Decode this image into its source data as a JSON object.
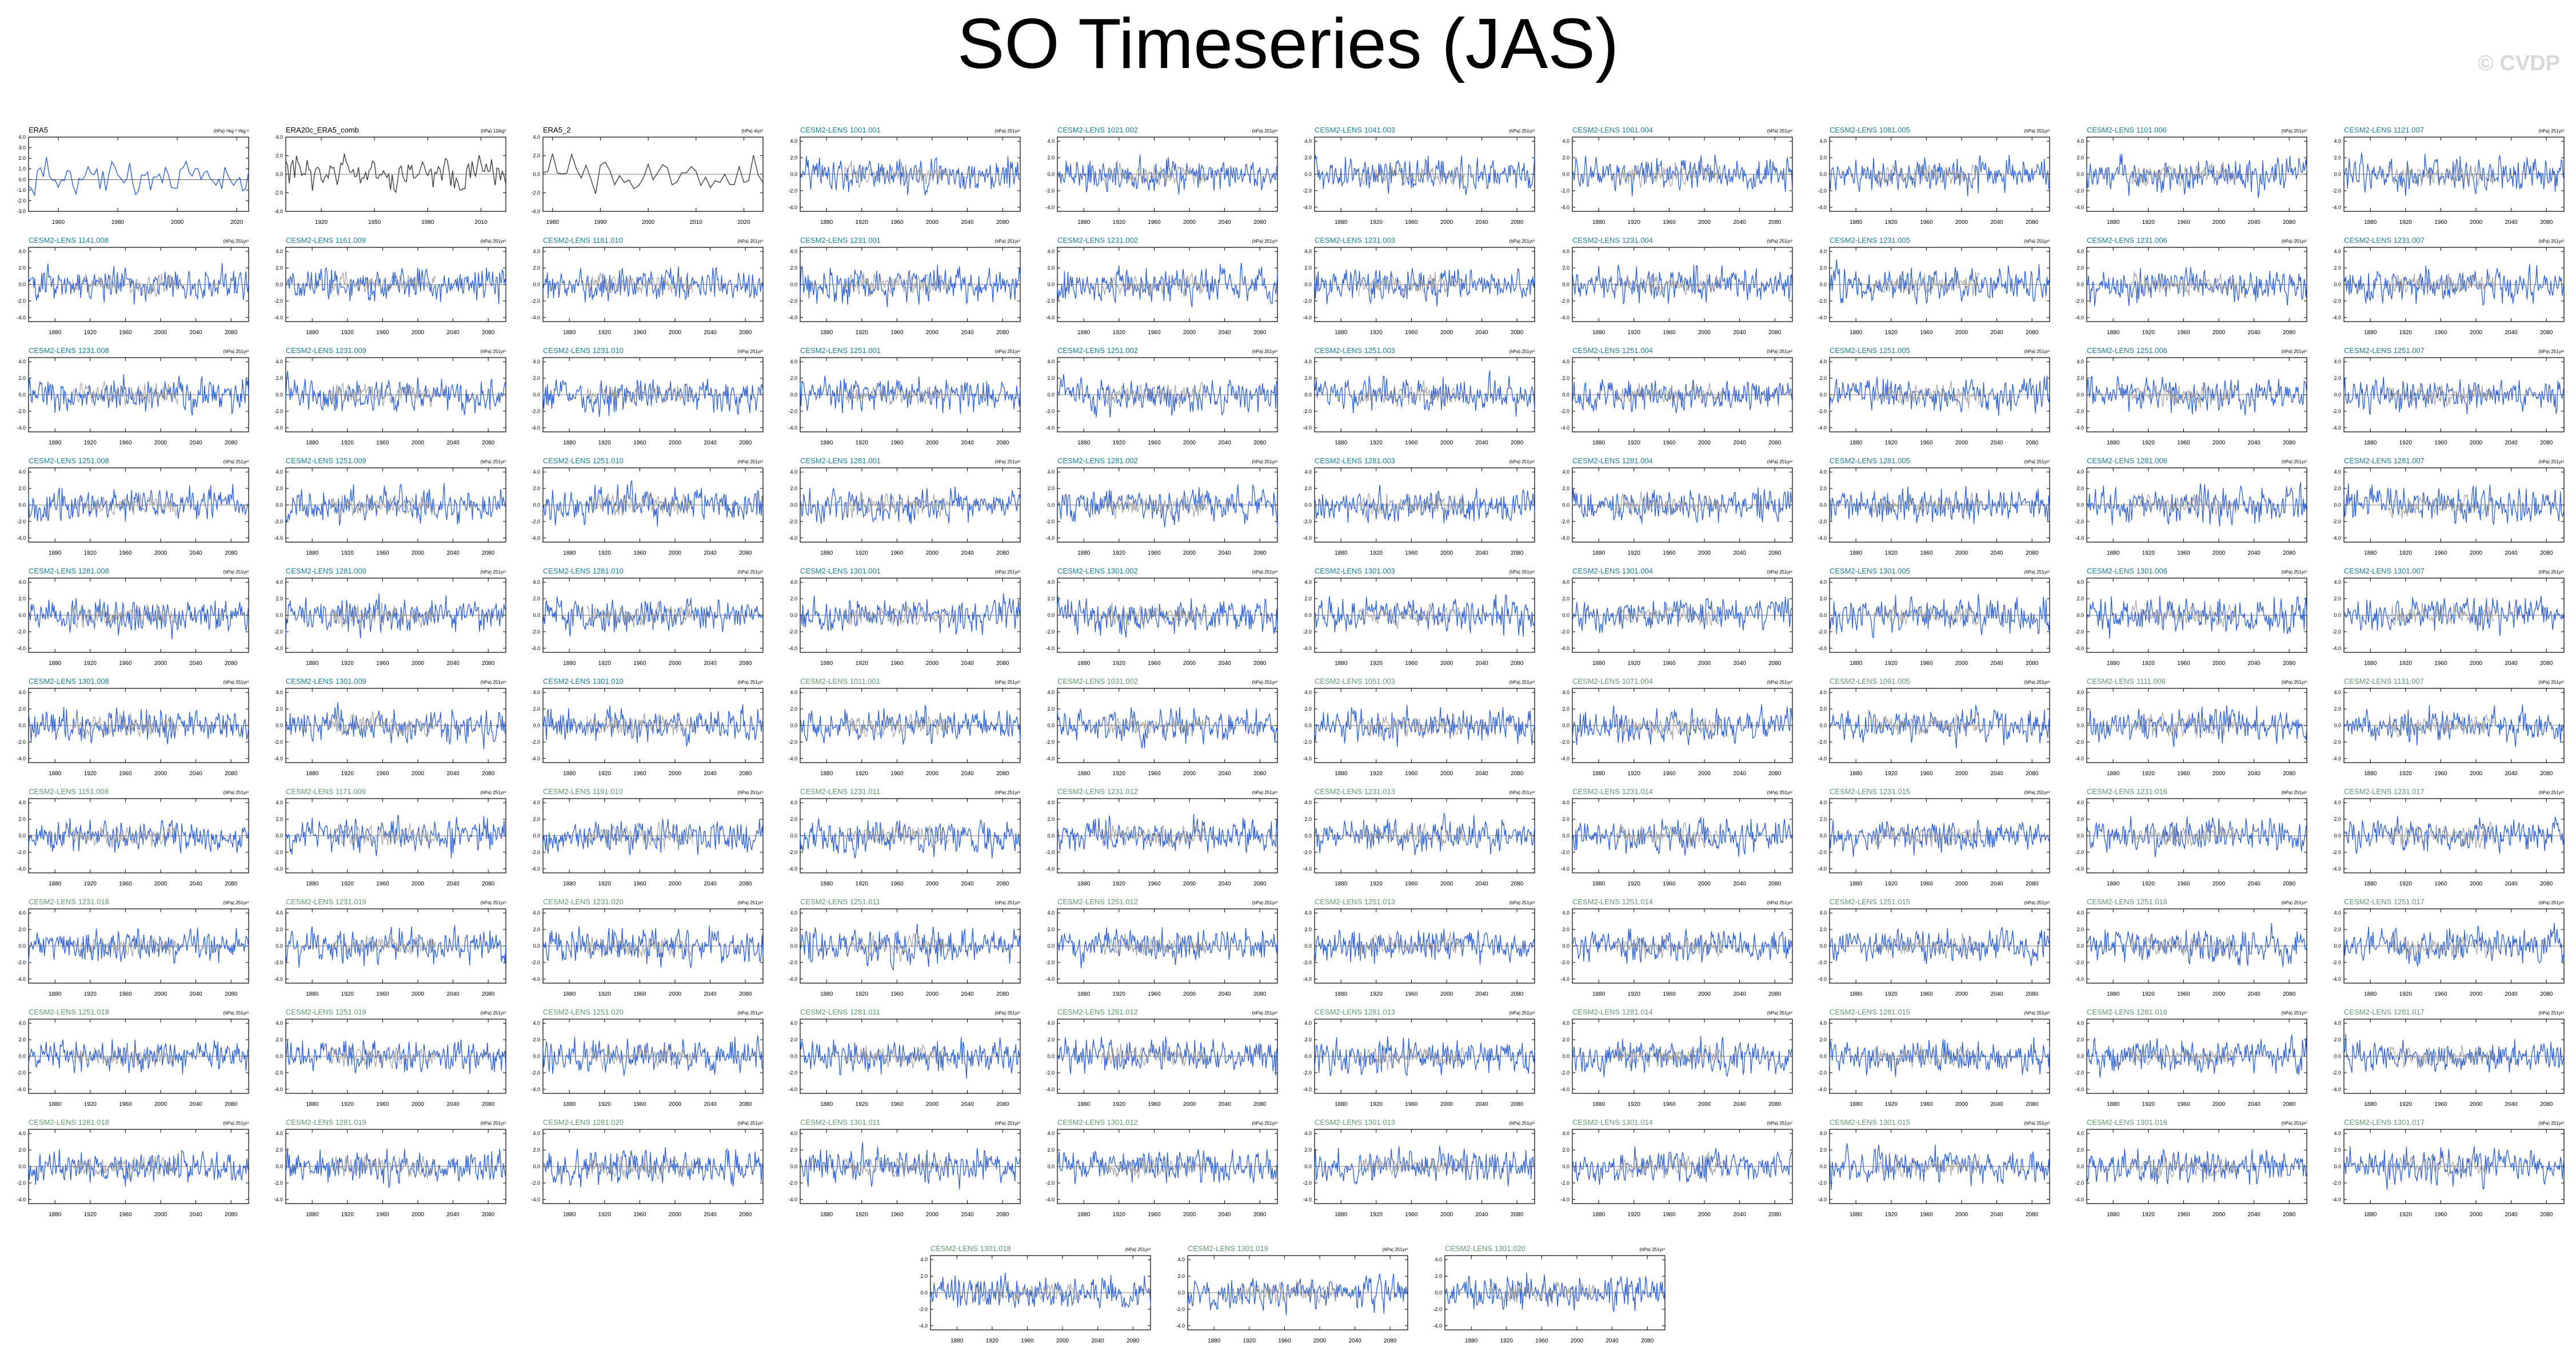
{
  "page": {
    "title": "SO Timeseries (JAS)",
    "watermark": "© CVDP"
  },
  "style": {
    "model_color": "#2b5fd9",
    "obs_color": "#3c3c3c",
    "ensmean_color": "#9a9a9a",
    "label_teal": "#1a7f9c",
    "label_green": "#5f9b6f",
    "label_black": "#000000"
  },
  "chart_data": [
    {
      "type": "line",
      "title": "ERA5",
      "units": "(hPa) ²/kg·² ²/kg·²",
      "x_ticks": [
        "1960",
        "1980",
        "2000",
        "2020"
      ],
      "xlim": [
        1950,
        2024
      ],
      "y_ticks": [
        "4.0",
        "3.0",
        "2.0",
        "1.0",
        "0.0",
        "-1.0",
        "-2.0",
        "-3.0"
      ],
      "ylim": [
        -3,
        4
      ],
      "label_style": "black",
      "series": [
        {
          "kind": "obs",
          "name": "",
          "seed": 11
        }
      ]
    },
    {
      "type": "line",
      "title": "ERA20c_ERA5_comb",
      "units": "(hPa) 12/kg²",
      "x_ticks": [
        "1920",
        "1950",
        "1980",
        "2010"
      ],
      "xlim": [
        1900,
        2024
      ],
      "y_ticks": [
        "4.0",
        "2.0",
        "0.0",
        "-2.0",
        "-4.0"
      ],
      "ylim": [
        -4,
        4
      ],
      "label_style": "black",
      "series": [
        {
          "kind": "obs",
          "name": "",
          "seed": 12
        }
      ]
    },
    {
      "type": "line",
      "title": "ERA5_2",
      "units": "(hPa) 4/yr²",
      "x_ticks": [
        "1980",
        "1990",
        "2000",
        "2010",
        "2020"
      ],
      "xlim": [
        1978,
        2024
      ],
      "y_ticks": [
        "4.0",
        "2.0",
        "0.0",
        "-2.0",
        "-4.0"
      ],
      "ylim": [
        -4,
        4
      ],
      "label_style": "black",
      "series": [
        {
          "kind": "obs",
          "name": "",
          "seed": 13
        }
      ]
    },
    {
      "type": "line",
      "title": "CESM2-LENS 1001.001",
      "units": "(hPa) 251yr²",
      "label_style": "teal"
    },
    {
      "type": "line",
      "title": "CESM2-LENS 1021.002",
      "units": "(hPa) 251yr²",
      "label_style": "teal"
    },
    {
      "type": "line",
      "title": "CESM2-LENS 1041.003",
      "units": "(hPa) 251yr²",
      "label_style": "teal"
    },
    {
      "type": "line",
      "title": "CESM2-LENS 1061.004",
      "units": "(hPa) 251yr²",
      "label_style": "teal"
    },
    {
      "type": "line",
      "title": "CESM2-LENS 1081.005",
      "units": "(hPa) 251yr²",
      "label_style": "teal"
    },
    {
      "type": "line",
      "title": "CESM2-LENS 1101.006",
      "units": "(hPa) 251yr²",
      "label_style": "teal"
    },
    {
      "type": "line",
      "title": "CESM2-LENS 1121.007",
      "units": "(hPa) 251yr²",
      "label_style": "teal"
    },
    {
      "type": "line",
      "title": "CESM2-LENS 1141.008",
      "units": "(hPa) 251yr²",
      "label_style": "teal"
    },
    {
      "type": "line",
      "title": "CESM2-LENS 1161.009",
      "units": "(hPa) 251yr²",
      "label_style": "teal"
    },
    {
      "type": "line",
      "title": "CESM2-LENS 1181.010",
      "units": "(hPa) 251yr²",
      "label_style": "teal"
    },
    {
      "type": "line",
      "title": "CESM2-LENS 1231.001",
      "units": "(hPa) 251yr²",
      "label_style": "teal"
    },
    {
      "type": "line",
      "title": "CESM2-LENS 1231.002",
      "units": "(hPa) 251yr²",
      "label_style": "teal"
    },
    {
      "type": "line",
      "title": "CESM2-LENS 1231.003",
      "units": "(hPa) 251yr²",
      "label_style": "teal"
    },
    {
      "type": "line",
      "title": "CESM2-LENS 1231.004",
      "units": "(hPa) 251yr²",
      "label_style": "teal"
    },
    {
      "type": "line",
      "title": "CESM2-LENS 1231.005",
      "units": "(hPa) 251yr²",
      "label_style": "teal"
    },
    {
      "type": "line",
      "title": "CESM2-LENS 1231.006",
      "units": "(hPa) 251yr²",
      "label_style": "teal"
    },
    {
      "type": "line",
      "title": "CESM2-LENS 1231.007",
      "units": "(hPa) 251yr²",
      "label_style": "teal"
    },
    {
      "type": "line",
      "title": "CESM2-LENS 1231.008",
      "units": "(hPa) 251yr²",
      "label_style": "teal"
    },
    {
      "type": "line",
      "title": "CESM2-LENS 1231.009",
      "units": "(hPa) 251yr²",
      "label_style": "teal"
    },
    {
      "type": "line",
      "title": "CESM2-LENS 1231.010",
      "units": "(hPa) 251yr²",
      "label_style": "teal"
    },
    {
      "type": "line",
      "title": "CESM2-LENS 1251.001",
      "units": "(hPa) 251yr²",
      "label_style": "teal"
    },
    {
      "type": "line",
      "title": "CESM2-LENS 1251.002",
      "units": "(hPa) 251yr²",
      "label_style": "teal"
    },
    {
      "type": "line",
      "title": "CESM2-LENS 1251.003",
      "units": "(hPa) 251yr²",
      "label_style": "teal"
    },
    {
      "type": "line",
      "title": "CESM2-LENS 1251.004",
      "units": "(hPa) 251yr²",
      "label_style": "teal"
    },
    {
      "type": "line",
      "title": "CESM2-LENS 1251.005",
      "units": "(hPa) 251yr²",
      "label_style": "teal"
    },
    {
      "type": "line",
      "title": "CESM2-LENS 1251.006",
      "units": "(hPa) 251yr²",
      "label_style": "teal"
    },
    {
      "type": "line",
      "title": "CESM2-LENS 1251.007",
      "units": "(hPa) 251yr²",
      "label_style": "teal"
    },
    {
      "type": "line",
      "title": "CESM2-LENS 1251.008",
      "units": "(hPa) 251yr²",
      "label_style": "teal"
    },
    {
      "type": "line",
      "title": "CESM2-LENS 1251.009",
      "units": "(hPa) 251yr²",
      "label_style": "teal"
    },
    {
      "type": "line",
      "title": "CESM2-LENS 1251.010",
      "units": "(hPa) 251yr²",
      "label_style": "teal"
    },
    {
      "type": "line",
      "title": "CESM2-LENS 1281.001",
      "units": "(hPa) 251yr²",
      "label_style": "teal"
    },
    {
      "type": "line",
      "title": "CESM2-LENS 1281.002",
      "units": "(hPa) 251yr²",
      "label_style": "teal"
    },
    {
      "type": "line",
      "title": "CESM2-LENS 1281.003",
      "units": "(hPa) 251yr²",
      "label_style": "teal"
    },
    {
      "type": "line",
      "title": "CESM2-LENS 1281.004",
      "units": "(hPa) 251yr²",
      "label_style": "teal"
    },
    {
      "type": "line",
      "title": "CESM2-LENS 1281.005",
      "units": "(hPa) 251yr²",
      "label_style": "teal"
    },
    {
      "type": "line",
      "title": "CESM2-LENS 1281.006",
      "units": "(hPa) 251yr²",
      "label_style": "teal"
    },
    {
      "type": "line",
      "title": "CESM2-LENS 1281.007",
      "units": "(hPa) 251yr²",
      "label_style": "teal"
    },
    {
      "type": "line",
      "title": "CESM2-LENS 1281.008",
      "units": "(hPa) 251yr²",
      "label_style": "teal"
    },
    {
      "type": "line",
      "title": "CESM2-LENS 1281.009",
      "units": "(hPa) 251yr²",
      "label_style": "teal"
    },
    {
      "type": "line",
      "title": "CESM2-LENS 1281.010",
      "units": "(hPa) 251yr²",
      "label_style": "teal"
    },
    {
      "type": "line",
      "title": "CESM2-LENS 1301.001",
      "units": "(hPa) 251yr²",
      "label_style": "teal"
    },
    {
      "type": "line",
      "title": "CESM2-LENS 1301.002",
      "units": "(hPa) 251yr²",
      "label_style": "teal"
    },
    {
      "type": "line",
      "title": "CESM2-LENS 1301.003",
      "units": "(hPa) 251yr²",
      "label_style": "teal"
    },
    {
      "type": "line",
      "title": "CESM2-LENS 1301.004",
      "units": "(hPa) 251yr²",
      "label_style": "teal"
    },
    {
      "type": "line",
      "title": "CESM2-LENS 1301.005",
      "units": "(hPa) 251yr²",
      "label_style": "teal"
    },
    {
      "type": "line",
      "title": "CESM2-LENS 1301.006",
      "units": "(hPa) 251yr²",
      "label_style": "teal"
    },
    {
      "type": "line",
      "title": "CESM2-LENS 1301.007",
      "units": "(hPa) 251yr²",
      "label_style": "teal"
    },
    {
      "type": "line",
      "title": "CESM2-LENS 1301.008",
      "units": "(hPa) 251yr²",
      "label_style": "teal"
    },
    {
      "type": "line",
      "title": "CESM2-LENS 1301.009",
      "units": "(hPa) 251yr²",
      "label_style": "teal"
    },
    {
      "type": "line",
      "title": "CESM2-LENS 1301.010",
      "units": "(hPa) 251yr²",
      "label_style": "teal"
    },
    {
      "type": "line",
      "title": "CESM2-LENS 1011.001",
      "units": "(hPa) 251yr²",
      "label_style": "green"
    },
    {
      "type": "line",
      "title": "CESM2-LENS 1031.002",
      "units": "(hPa) 251yr²",
      "label_style": "green"
    },
    {
      "type": "line",
      "title": "CESM2-LENS 1051.003",
      "units": "(hPa) 251yr²",
      "label_style": "green"
    },
    {
      "type": "line",
      "title": "CESM2-LENS 1071.004",
      "units": "(hPa) 251yr²",
      "label_style": "green"
    },
    {
      "type": "line",
      "title": "CESM2-LENS 1091.005",
      "units": "(hPa) 251yr²",
      "label_style": "green"
    },
    {
      "type": "line",
      "title": "CESM2-LENS 1111.006",
      "units": "(hPa) 251yr²",
      "label_style": "green"
    },
    {
      "type": "line",
      "title": "CESM2-LENS 1131.007",
      "units": "(hPa) 251yr²",
      "label_style": "green"
    },
    {
      "type": "line",
      "title": "CESM2-LENS 1151.008",
      "units": "(hPa) 251yr²",
      "label_style": "green"
    },
    {
      "type": "line",
      "title": "CESM2-LENS 1171.009",
      "units": "(hPa) 251yr²",
      "label_style": "green"
    },
    {
      "type": "line",
      "title": "CESM2-LENS 1191.010",
      "units": "(hPa) 251yr²",
      "label_style": "green"
    },
    {
      "type": "line",
      "title": "CESM2-LENS 1231.011",
      "units": "(hPa) 251yr²",
      "label_style": "green"
    },
    {
      "type": "line",
      "title": "CESM2-LENS 1231.012",
      "units": "(hPa) 251yr²",
      "label_style": "green"
    },
    {
      "type": "line",
      "title": "CESM2-LENS 1231.013",
      "units": "(hPa) 251yr²",
      "label_style": "green"
    },
    {
      "type": "line",
      "title": "CESM2-LENS 1231.014",
      "units": "(hPa) 251yr²",
      "label_style": "green"
    },
    {
      "type": "line",
      "title": "CESM2-LENS 1231.015",
      "units": "(hPa) 251yr²",
      "label_style": "green"
    },
    {
      "type": "line",
      "title": "CESM2-LENS 1231.016",
      "units": "(hPa) 251yr²",
      "label_style": "green"
    },
    {
      "type": "line",
      "title": "CESM2-LENS 1231.017",
      "units": "(hPa) 251yr²",
      "label_style": "green"
    },
    {
      "type": "line",
      "title": "CESM2-LENS 1231.018",
      "units": "(hPa) 251yr²",
      "label_style": "green"
    },
    {
      "type": "line",
      "title": "CESM2-LENS 1231.019",
      "units": "(hPa) 251yr²",
      "label_style": "green"
    },
    {
      "type": "line",
      "title": "CESM2-LENS 1231.020",
      "units": "(hPa) 251yr²",
      "label_style": "green"
    },
    {
      "type": "line",
      "title": "CESM2-LENS 1251.011",
      "units": "(hPa) 251yr²",
      "label_style": "green"
    },
    {
      "type": "line",
      "title": "CESM2-LENS 1251.012",
      "units": "(hPa) 251yr²",
      "label_style": "green"
    },
    {
      "type": "line",
      "title": "CESM2-LENS 1251.013",
      "units": "(hPa) 251yr²",
      "label_style": "green"
    },
    {
      "type": "line",
      "title": "CESM2-LENS 1251.014",
      "units": "(hPa) 251yr²",
      "label_style": "green"
    },
    {
      "type": "line",
      "title": "CESM2-LENS 1251.015",
      "units": "(hPa) 251yr²",
      "label_style": "green"
    },
    {
      "type": "line",
      "title": "CESM2-LENS 1251.016",
      "units": "(hPa) 251yr²",
      "label_style": "green"
    },
    {
      "type": "line",
      "title": "CESM2-LENS 1251.017",
      "units": "(hPa) 251yr²",
      "label_style": "green"
    },
    {
      "type": "line",
      "title": "CESM2-LENS 1251.018",
      "units": "(hPa) 251yr²",
      "label_style": "green"
    },
    {
      "type": "line",
      "title": "CESM2-LENS 1251.019",
      "units": "(hPa) 251yr²",
      "label_style": "green"
    },
    {
      "type": "line",
      "title": "CESM2-LENS 1251.020",
      "units": "(hPa) 251yr²",
      "label_style": "green"
    },
    {
      "type": "line",
      "title": "CESM2-LENS 1281.011",
      "units": "(hPa) 251yr²",
      "label_style": "green"
    },
    {
      "type": "line",
      "title": "CESM2-LENS 1281.012",
      "units": "(hPa) 251yr²",
      "label_style": "green"
    },
    {
      "type": "line",
      "title": "CESM2-LENS 1281.013",
      "units": "(hPa) 251yr²",
      "label_style": "green"
    },
    {
      "type": "line",
      "title": "CESM2-LENS 1281.014",
      "units": "(hPa) 251yr²",
      "label_style": "green"
    },
    {
      "type": "line",
      "title": "CESM2-LENS 1281.015",
      "units": "(hPa) 251yr²",
      "label_style": "green"
    },
    {
      "type": "line",
      "title": "CESM2-LENS 1281.016",
      "units": "(hPa) 251yr²",
      "label_style": "green"
    },
    {
      "type": "line",
      "title": "CESM2-LENS 1281.017",
      "units": "(hPa) 251yr²",
      "label_style": "green"
    },
    {
      "type": "line",
      "title": "CESM2-LENS 1281.018",
      "units": "(hPa) 251yr²",
      "label_style": "green"
    },
    {
      "type": "line",
      "title": "CESM2-LENS 1281.019",
      "units": "(hPa) 251yr²",
      "label_style": "green"
    },
    {
      "type": "line",
      "title": "CESM2-LENS 1281.020",
      "units": "(hPa) 251yr²",
      "label_style": "green"
    },
    {
      "type": "line",
      "title": "CESM2-LENS 1301.011",
      "units": "(hPa) 251yr²",
      "label_style": "green"
    },
    {
      "type": "line",
      "title": "CESM2-LENS 1301.012",
      "units": "(hPa) 251yr²",
      "label_style": "green"
    },
    {
      "type": "line",
      "title": "CESM2-LENS 1301.013",
      "units": "(hPa) 251yr²",
      "label_style": "green"
    },
    {
      "type": "line",
      "title": "CESM2-LENS 1301.014",
      "units": "(hPa) 251yr²",
      "label_style": "green"
    },
    {
      "type": "line",
      "title": "CESM2-LENS 1301.015",
      "units": "(hPa) 251yr²",
      "label_style": "green"
    },
    {
      "type": "line",
      "title": "CESM2-LENS 1301.016",
      "units": "(hPa) 251yr²",
      "label_style": "green"
    },
    {
      "type": "line",
      "title": "CESM2-LENS 1301.017",
      "units": "(hPa) 251yr²",
      "label_style": "green"
    },
    {
      "type": "line",
      "title": "CESM2-LENS 1301.018",
      "units": "(hPa) 251yr²",
      "label_style": "green"
    },
    {
      "type": "line",
      "title": "CESM2-LENS 1301.019",
      "units": "(hPa) 251yr²",
      "label_style": "green"
    },
    {
      "type": "line",
      "title": "CESM2-LENS 1301.020",
      "units": "(hPa) 251yr²",
      "label_style": "green"
    }
  ],
  "model_defaults": {
    "x_ticks": [
      "1880",
      "1920",
      "1960",
      "2000",
      "2040",
      "2080"
    ],
    "xlim": [
      1850,
      2100
    ],
    "y_ticks": [
      "4.0",
      "2.0",
      "0.0",
      "-2.0",
      "-4.0"
    ],
    "ylim": [
      -4.5,
      4.5
    ]
  }
}
